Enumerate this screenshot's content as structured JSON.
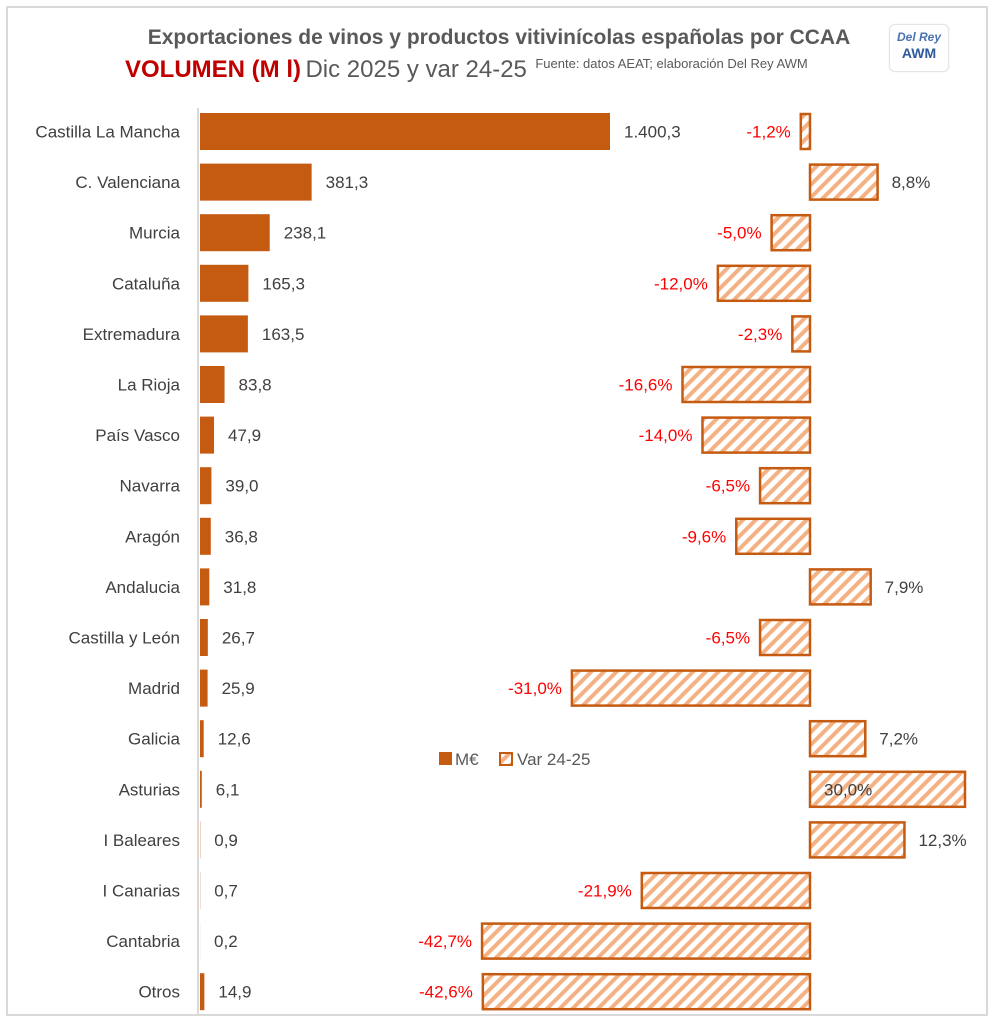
{
  "header": {
    "title": "Exportaciones de vinos y productos vitivinícolas españolas por CCAA",
    "subtitle_highlight": "VOLUMEN (M l)",
    "subtitle_main": "Dic 2025 y var 24-25",
    "source": "Fuente: datos AEAT; elaboración Del Rey AWM",
    "logo_line1": "Del Rey",
    "logo_line2": "AWM"
  },
  "colors": {
    "bar": "#c55a11",
    "hatch": "#f4b183",
    "hatch_border": "#c55a11",
    "negative_label": "#ff0000",
    "positive_label": "#404040",
    "title_red": "#c00000"
  },
  "chart_data": {
    "type": "bar",
    "orientation": "horizontal",
    "title": "Exportaciones de vinos y productos vitivinícolas españolas por CCAA",
    "subtitle": "VOLUMEN (M l) Dic 2025 y var 24-25",
    "categories": [
      "Castilla La Mancha",
      "C. Valenciana",
      "Murcia",
      "Cataluña",
      "Extremadura",
      "La Rioja",
      "País Vasco",
      "Navarra",
      "Aragón",
      "Andalucia",
      "Castilla y León",
      "Madrid",
      "Galicia",
      "Asturias",
      "I Baleares",
      "I Canarias",
      "Cantabria",
      "Otros"
    ],
    "series": [
      {
        "name": "M€",
        "values": [
          1400.3,
          381.3,
          238.1,
          165.3,
          163.5,
          83.8,
          47.9,
          39.0,
          36.8,
          31.8,
          26.7,
          25.9,
          12.6,
          6.1,
          0.9,
          0.7,
          0.2,
          14.9
        ],
        "labels": [
          "1.400,3",
          "381,3",
          "238,1",
          "165,3",
          "163,5",
          "83,8",
          "47,9",
          "39,0",
          "36,8",
          "31,8",
          "26,7",
          "25,9",
          "12,6",
          "6,1",
          "0,9",
          "0,7",
          "0,2",
          "14,9"
        ]
      },
      {
        "name": "Var 24-25",
        "values": [
          -1.2,
          8.8,
          -5.0,
          -12.0,
          -2.3,
          -16.6,
          -14.0,
          -6.5,
          -9.6,
          7.9,
          -6.5,
          -31.0,
          7.2,
          30.0,
          12.3,
          -21.9,
          -42.7,
          -42.6
        ],
        "labels": [
          "-1,2%",
          "8,8%",
          "-5,0%",
          "-12,0%",
          "-2,3%",
          "-16,6%",
          "-14,0%",
          "-6,5%",
          "-9,6%",
          "7,9%",
          "-6,5%",
          "-31,0%",
          "7,2%",
          "30,0%",
          "12,3%",
          "-21,9%",
          "-42,7%",
          "-42,6%"
        ]
      }
    ],
    "legend": {
      "entries": [
        "M€",
        "Var 24-25"
      ],
      "placement": "center"
    },
    "grid": false,
    "xlabel": "",
    "ylabel": ""
  }
}
